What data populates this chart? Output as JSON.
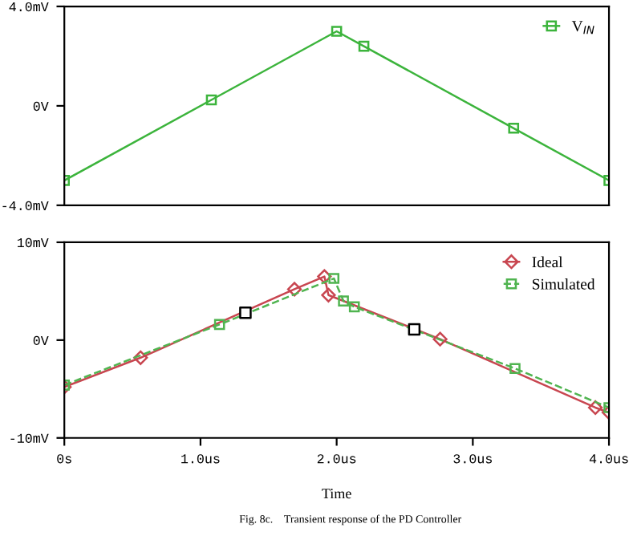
{
  "chart_data": [
    {
      "type": "line",
      "xlim": [
        0,
        4
      ],
      "ylim": [
        -4,
        4
      ],
      "yticks": [
        {
          "value": -4,
          "label": "-4.0mV"
        },
        {
          "value": 0,
          "label": "0V"
        },
        {
          "value": 4,
          "label": "4.0mV"
        }
      ],
      "tick_labels": "y",
      "legend": "top right",
      "grid": false,
      "series": [
        {
          "name": "V$_{IN}$",
          "color": "#3cb43c",
          "marker": "square",
          "line_style": "solid",
          "x": [
            0,
            1.08,
            2.0,
            2.2,
            3.3,
            4.0
          ],
          "values": [
            -3.0,
            0.24,
            3.0,
            2.4,
            -0.9,
            -3.0
          ]
        }
      ]
    },
    {
      "type": "line",
      "xlim": [
        0,
        4
      ],
      "ylim": [
        -10,
        10
      ],
      "xticks": [
        {
          "value": 0,
          "label": "0s"
        },
        {
          "value": 1,
          "label": "1.0us"
        },
        {
          "value": 2,
          "label": "2.0us"
        },
        {
          "value": 3,
          "label": "3.0us"
        },
        {
          "value": 4,
          "label": "4.0us"
        }
      ],
      "yticks": [
        {
          "value": -10,
          "label": "-10mV"
        },
        {
          "value": 0,
          "label": "0V"
        },
        {
          "value": 10,
          "label": "10mV"
        }
      ],
      "xlabel": "Time",
      "legend": "top right",
      "grid": false,
      "annotations": [
        "Fig. 8c.    Transient response of the PD Controller"
      ],
      "series": [
        {
          "name": "Ideal",
          "color": "#c84650",
          "marker": "diamond",
          "line_style": "solid",
          "x": [
            0,
            0.56,
            1.69,
            1.91,
            1.94,
            2.76,
            3.9,
            4.0
          ],
          "values": [
            -4.8,
            -1.8,
            5.2,
            6.5,
            4.6,
            0.1,
            -6.9,
            -7.4
          ]
        },
        {
          "name": "Simulated",
          "color": "#50b450",
          "marker": "square",
          "line_style": "dashed",
          "x": [
            0,
            1.14,
            1.98,
            2.05,
            2.13,
            3.31,
            4.0
          ],
          "values": [
            -4.6,
            1.6,
            6.3,
            4.0,
            3.4,
            -2.9,
            -6.9
          ]
        },
        {
          "type": "scatter",
          "color": "#000000",
          "marker": "square",
          "x": [
            1.33,
            2.57
          ],
          "values": [
            2.8,
            1.1
          ]
        }
      ]
    }
  ]
}
